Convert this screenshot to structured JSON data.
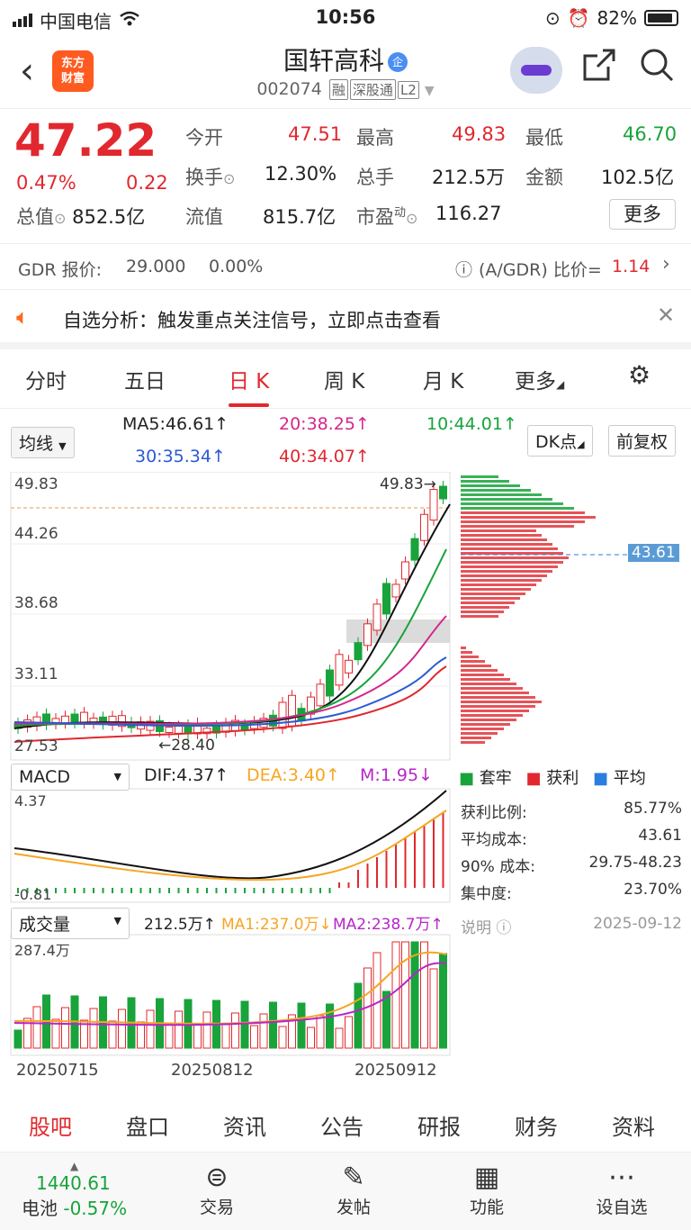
{
  "status_bar": {
    "carrier": "中国电信",
    "time": "10:56",
    "battery": "82%"
  },
  "header": {
    "logo_line1": "东方",
    "logo_line2": "财富",
    "name": "国轩高科",
    "name_tag": "企",
    "code": "002074",
    "badge1": "融",
    "badge2": "深股通",
    "badge3": "L2"
  },
  "quote": {
    "price": "47.22",
    "change_pct": "0.47%",
    "change": "0.22",
    "total_value_label": "总值",
    "total_value": "852.5亿",
    "open_label": "今开",
    "open": "47.51",
    "high_label": "最高",
    "high": "49.83",
    "low_label": "最低",
    "low": "46.70",
    "turnover_label": "换手",
    "turnover": "12.30%",
    "volume_label": "总手",
    "volume": "212.5万",
    "amount_label": "金额",
    "amount": "102.5亿",
    "float_label": "流值",
    "float_value": "815.7亿",
    "pe_label": "市盈",
    "pe_sup": "动",
    "pe": "116.27",
    "more_label": "更多"
  },
  "gdr": {
    "label": "GDR 报价:",
    "price": "29.000",
    "pct": "0.00%",
    "ratio_label": "(A/GDR) 比价=",
    "ratio": "1.14"
  },
  "notice": {
    "text": "自选分析：触发重点关注信号，立即点击查看"
  },
  "tabs": [
    "分时",
    "五日",
    "日 K",
    "周 K",
    "月 K",
    "更多"
  ],
  "ma": {
    "select": "均线",
    "ma5": "MA5:46.61↑",
    "ma20": "20:38.25↑",
    "ma10": "10:44.01↑",
    "ma30": "30:35.34↑",
    "ma40": "40:34.07↑",
    "dk_label": "DK点",
    "adjust_label": "前复权"
  },
  "chart_data": {
    "type": "candlestick",
    "y_ticks": [
      "49.83",
      "44.26",
      "38.68",
      "33.11",
      "27.53"
    ],
    "high_marker": "49.83→",
    "low_marker": "←28.40",
    "cost_line_label": "43.61",
    "x_labels": [
      "20250715",
      "20250812",
      "20250912"
    ],
    "macd": {
      "select": "MACD",
      "dif": "DIF:4.37↑",
      "dea": "DEA:3.40↑",
      "m": "M:1.95↓",
      "top": "4.37",
      "bottom": "-0.81"
    },
    "volume": {
      "select": "成交量",
      "vol": "212.5万↑",
      "ma1": "MA1:237.0万↓",
      "ma2": "MA2:238.7万↑",
      "top": "287.4万"
    }
  },
  "chip": {
    "legend_locked": "套牢",
    "legend_profit": "获利",
    "legend_avg": "平均",
    "rows": [
      {
        "label": "获利比例:",
        "value": "85.77%"
      },
      {
        "label": "平均成本:",
        "value": "43.61"
      },
      {
        "label": "90% 成本:",
        "value": "29.75-48.23"
      },
      {
        "label": "集中度:",
        "value": "23.70%"
      }
    ],
    "note_label": "说明",
    "date": "2025-09-12"
  },
  "bottom_tabs": [
    "股吧",
    "盘口",
    "资讯",
    "公告",
    "研报",
    "财务",
    "资料"
  ],
  "toolbar": {
    "index_value": "1440.61",
    "index_name": "电池",
    "index_pct": "-0.57%",
    "trade": "交易",
    "post": "发帖",
    "func": "功能",
    "watch": "设自选"
  }
}
